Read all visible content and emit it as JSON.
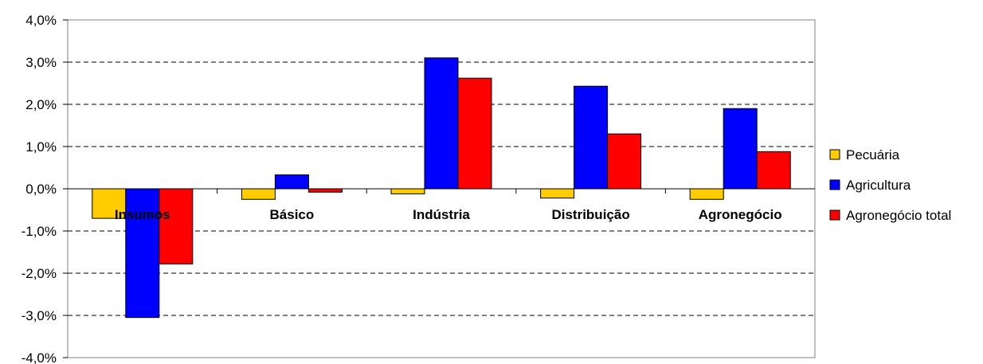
{
  "chart_data": {
    "type": "bar",
    "categories": [
      "Insumos",
      "Básico",
      "Indústria",
      "Distribuição",
      "Agronegócio"
    ],
    "series": [
      {
        "name": "Pecuária",
        "color": "#FFCC00",
        "values": [
          -0.7,
          -0.25,
          -0.12,
          -0.22,
          -0.25
        ]
      },
      {
        "name": "Agricultura",
        "color": "#0000FF",
        "values": [
          -3.05,
          0.33,
          3.1,
          2.43,
          1.9
        ]
      },
      {
        "name": "Agronegócio total",
        "color": "#FF0000",
        "values": [
          -1.78,
          -0.08,
          2.62,
          1.3,
          0.88
        ]
      }
    ],
    "ylim": [
      -4.0,
      4.0
    ],
    "ytick_step": 1.0,
    "yticks": [
      "-4,0%",
      "-3,0%",
      "-2,0%",
      "-1,0%",
      "0,0%",
      "1,0%",
      "2,0%",
      "3,0%",
      "4,0%"
    ],
    "grid": "dashed horizontal",
    "legend_position": "right",
    "title": "",
    "xlabel": "",
    "ylabel": ""
  }
}
